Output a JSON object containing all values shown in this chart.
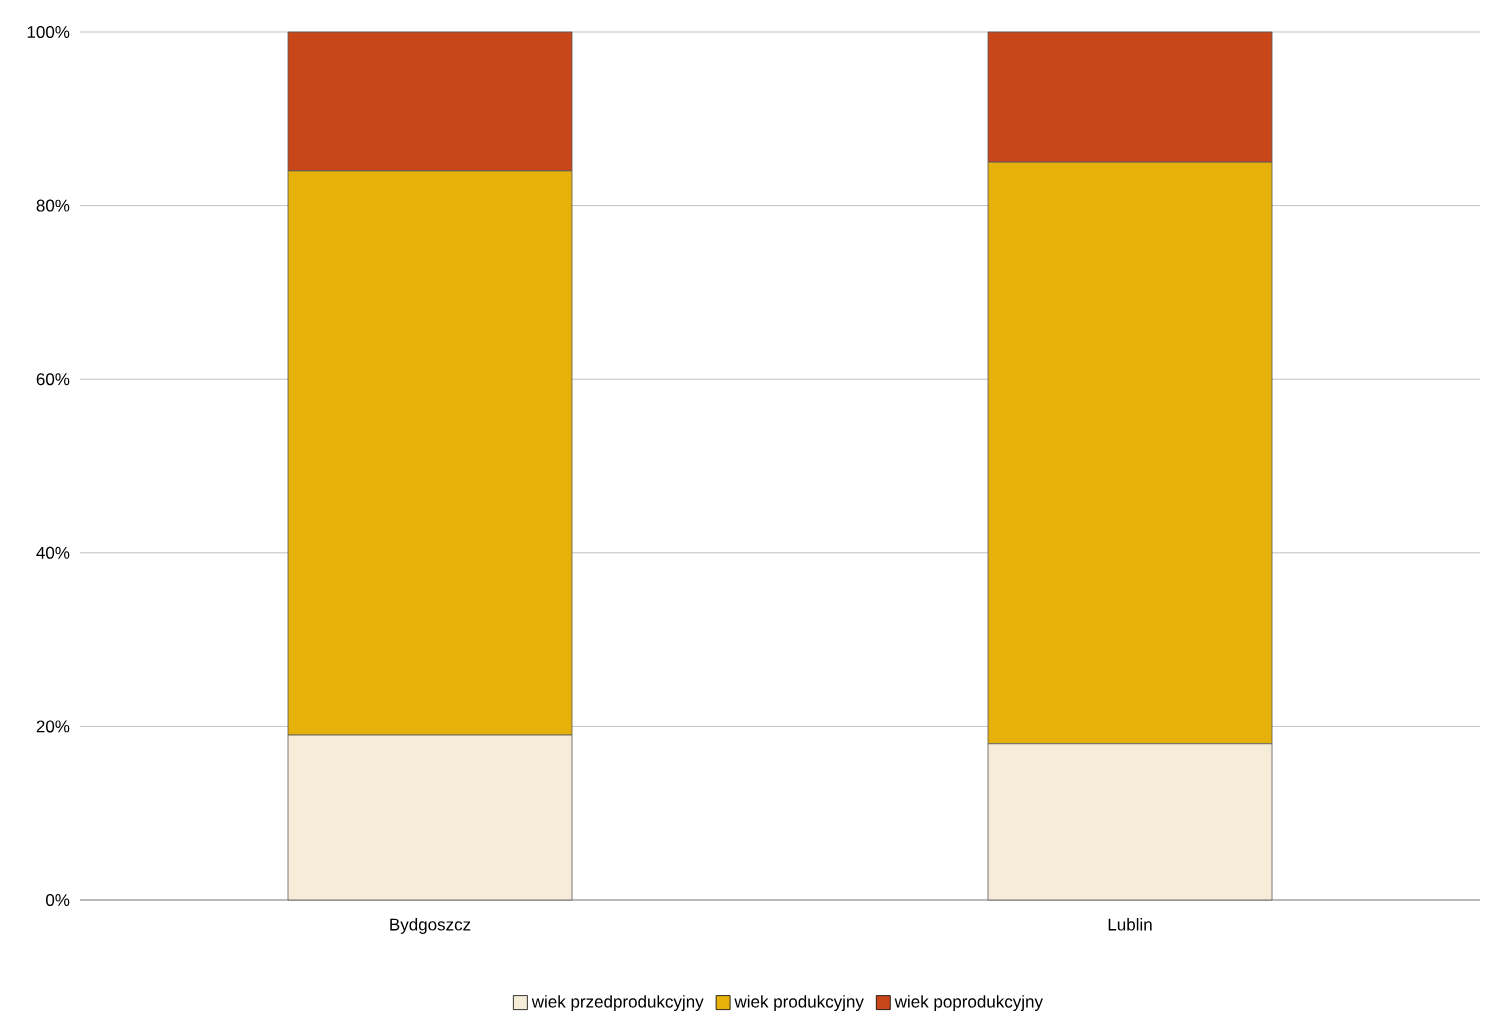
{
  "chart_data": {
    "type": "bar",
    "stacked": true,
    "categories": [
      "Bydgoszcz",
      "Lublin"
    ],
    "series": [
      {
        "name": "wiek przedprodukcyjny",
        "color": "#f6edd8",
        "values": [
          19,
          18
        ]
      },
      {
        "name": "wiek produkcyjny",
        "color": "#e7b10c",
        "values": [
          65,
          67
        ]
      },
      {
        "name": "wiek poprodukcyjny",
        "color": "#c9461a",
        "values": [
          16,
          15
        ]
      }
    ],
    "ylim": [
      0,
      100
    ],
    "yticks": [
      {
        "value": 0,
        "label": "0%"
      },
      {
        "value": 20,
        "label": "20%"
      },
      {
        "value": 40,
        "label": "40%"
      },
      {
        "value": 60,
        "label": "60%"
      },
      {
        "value": 80,
        "label": "80%"
      },
      {
        "value": 100,
        "label": "100%"
      }
    ],
    "grid": "y",
    "legend": "bottom"
  }
}
